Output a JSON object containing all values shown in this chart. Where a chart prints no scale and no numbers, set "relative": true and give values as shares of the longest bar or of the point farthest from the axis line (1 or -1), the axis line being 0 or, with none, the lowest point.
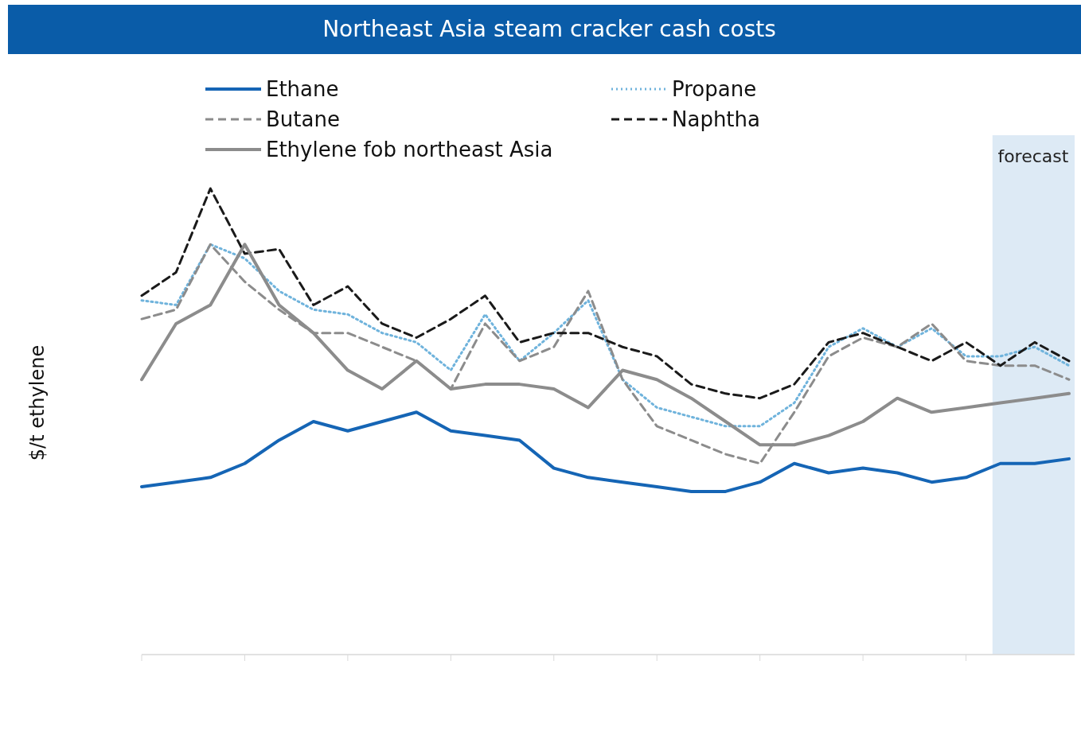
{
  "chart_data": {
    "type": "line",
    "title": "Northeast Asia steam cracker cash costs",
    "ylabel": "$/t ethylene",
    "relative": true,
    "legend": "top left",
    "grid": false,
    "marker": "none",
    "categories": [
      null,
      null,
      null,
      null,
      null,
      null,
      null,
      null,
      null,
      null,
      null,
      null,
      null,
      null,
      null,
      null,
      null,
      null,
      null,
      null,
      null,
      null,
      null,
      null,
      null,
      null,
      null,
      null
    ],
    "annotations": [
      "forecast"
    ],
    "series": [
      {
        "name": "Ethane",
        "color": "#1565b5",
        "line_style": "solid",
        "values": [
          0.36,
          0.37,
          0.38,
          0.41,
          0.46,
          0.5,
          0.48,
          0.5,
          0.52,
          0.48,
          0.47,
          0.46,
          0.4,
          0.38,
          0.37,
          0.36,
          0.35,
          0.35,
          0.37,
          0.41,
          0.39,
          0.4,
          0.39,
          0.37,
          0.38,
          0.41,
          0.41,
          0.42
        ]
      },
      {
        "name": "Propane",
        "color": "#6fb3dc",
        "line_style": "dotted",
        "values": [
          0.76,
          0.75,
          0.88,
          0.85,
          0.78,
          0.74,
          0.73,
          0.69,
          0.67,
          0.61,
          0.73,
          0.63,
          0.69,
          0.76,
          0.59,
          0.53,
          0.51,
          0.49,
          0.49,
          0.54,
          0.66,
          0.7,
          0.66,
          0.7,
          0.64,
          0.64,
          0.66,
          0.62
        ]
      },
      {
        "name": "Butane",
        "color": "#8c8c8c",
        "line_style": "dashed",
        "values": [
          0.72,
          0.74,
          0.88,
          0.8,
          0.74,
          0.69,
          0.69,
          0.66,
          0.63,
          0.57,
          0.71,
          0.63,
          0.66,
          0.78,
          0.59,
          0.49,
          0.46,
          0.43,
          0.41,
          0.52,
          0.64,
          0.68,
          0.66,
          0.71,
          0.63,
          0.62,
          0.62,
          0.59
        ]
      },
      {
        "name": "Naphtha",
        "color": "#1a1a1a",
        "line_style": "dashed",
        "values": [
          0.77,
          0.82,
          1,
          0.86,
          0.87,
          0.75,
          0.79,
          0.71,
          0.68,
          0.72,
          0.77,
          0.67,
          0.69,
          0.69,
          0.66,
          0.64,
          0.58,
          0.56,
          0.55,
          0.58,
          0.67,
          0.69,
          0.66,
          0.63,
          0.67,
          0.62,
          0.67,
          0.63
        ]
      },
      {
        "name": "Ethylene fob northeast Asia",
        "color": "#8c8c8c",
        "line_style": "solid",
        "values": [
          0.59,
          0.71,
          0.75,
          0.88,
          0.75,
          0.69,
          0.61,
          0.57,
          0.63,
          0.57,
          0.58,
          0.58,
          0.57,
          0.53,
          0.61,
          0.59,
          0.55,
          0.5,
          0.45,
          0.45,
          0.47,
          0.5,
          0.55,
          0.52,
          0.53,
          0.54,
          0.55,
          0.56
        ]
      }
    ]
  }
}
